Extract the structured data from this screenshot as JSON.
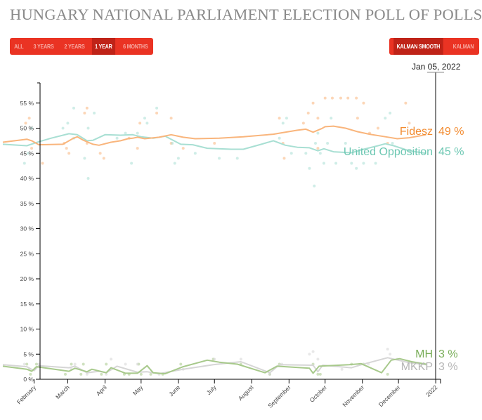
{
  "title": "HUNGARY NATIONAL PARLIAMENT ELECTION POLL OF POLLS",
  "range_buttons": [
    {
      "label": "ALL",
      "active": false
    },
    {
      "label": "3 YEARS",
      "active": false
    },
    {
      "label": "2 YEARS",
      "active": false
    },
    {
      "label": "1 YEAR",
      "active": true
    },
    {
      "label": "6 MONTHS",
      "active": false
    }
  ],
  "method_buttons": [
    {
      "label": "KALMAN SMOOTH",
      "active": true
    },
    {
      "label": "KALMAN",
      "active": false
    }
  ],
  "cursor_date": "Jan 05, 2022",
  "chart_data": {
    "type": "line",
    "title": "HUNGARY NATIONAL PARLIAMENT ELECTION POLL OF POLLS",
    "xlabel": "",
    "ylabel": "",
    "ylim": [
      0,
      58
    ],
    "xlim_days": [
      0,
      352
    ],
    "x_unit": "days since Jan 6, 2021",
    "yticks": [
      0,
      5,
      10,
      15,
      20,
      25,
      30,
      35,
      40,
      45,
      50,
      55
    ],
    "ytick_labels": [
      "0 %",
      "5 %",
      "10 %",
      "15 %",
      "20 %",
      "25 %",
      "30 %",
      "35 %",
      "40 %",
      "45 %",
      "50 %",
      "55 %"
    ],
    "xticks": [
      26,
      54,
      85,
      115,
      146,
      176,
      207,
      238,
      268,
      299,
      329,
      360
    ],
    "xtick_labels": [
      "February",
      "March",
      "April",
      "May",
      "June",
      "July",
      "August",
      "September",
      "October",
      "November",
      "December",
      "2022"
    ],
    "cursor_day": 364,
    "series": [
      {
        "name": "Fidesz",
        "color": "#f9b57c",
        "label_color": "#f28a2e",
        "last_value": "49 %",
        "line": [
          [
            0,
            47.2
          ],
          [
            20,
            47.8
          ],
          [
            24,
            47.5
          ],
          [
            30,
            46.7
          ],
          [
            50,
            46.8
          ],
          [
            58,
            47.9
          ],
          [
            62,
            48.3
          ],
          [
            67,
            47.6
          ],
          [
            75,
            46.8
          ],
          [
            80,
            46.6
          ],
          [
            90,
            47.2
          ],
          [
            98,
            47.5
          ],
          [
            104,
            47.9
          ],
          [
            108,
            48.0
          ],
          [
            112,
            48.2
          ],
          [
            118,
            47.9
          ],
          [
            130,
            48.2
          ],
          [
            140,
            48.7
          ],
          [
            150,
            48.2
          ],
          [
            160,
            47.9
          ],
          [
            180,
            48.0
          ],
          [
            200,
            48.3
          ],
          [
            225,
            48.8
          ],
          [
            230,
            49.0
          ],
          [
            245,
            49.6
          ],
          [
            252,
            49.8
          ],
          [
            258,
            49.2
          ],
          [
            265,
            49.9
          ],
          [
            268,
            50.3
          ],
          [
            275,
            50.4
          ],
          [
            285,
            50.0
          ],
          [
            295,
            49.3
          ],
          [
            305,
            48.8
          ],
          [
            318,
            48.3
          ],
          [
            328,
            47.9
          ],
          [
            338,
            48.1
          ],
          [
            352,
            48.7
          ]
        ],
        "points": [
          [
            19,
            51
          ],
          [
            22,
            52
          ],
          [
            24,
            46
          ],
          [
            33,
            43
          ],
          [
            51,
            47
          ],
          [
            53,
            46
          ],
          [
            55,
            45
          ],
          [
            68,
            53
          ],
          [
            70,
            54
          ],
          [
            70,
            47
          ],
          [
            81,
            45
          ],
          [
            84,
            44
          ],
          [
            105,
            48
          ],
          [
            112,
            46
          ],
          [
            114,
            51
          ],
          [
            128,
            53
          ],
          [
            140,
            52
          ],
          [
            140,
            47
          ],
          [
            150,
            46
          ],
          [
            176,
            47
          ],
          [
            230,
            52
          ],
          [
            233,
            47
          ],
          [
            234,
            44
          ],
          [
            250,
            51
          ],
          [
            254,
            53
          ],
          [
            258,
            55
          ],
          [
            262,
            52
          ],
          [
            262,
            46
          ],
          [
            268,
            56
          ],
          [
            274,
            56
          ],
          [
            281,
            56
          ],
          [
            287,
            56
          ],
          [
            294,
            56
          ],
          [
            300,
            55
          ],
          [
            295,
            52
          ],
          [
            305,
            49
          ],
          [
            312,
            50
          ],
          [
            320,
            47
          ],
          [
            335,
            55
          ],
          [
            338,
            51
          ]
        ]
      },
      {
        "name": "United Opposition",
        "color": "#a8dfd3",
        "label_color": "#6cc7b2",
        "last_value": "45 %",
        "line": [
          [
            0,
            46.8
          ],
          [
            20,
            46.5
          ],
          [
            30,
            47.3
          ],
          [
            40,
            48.0
          ],
          [
            55,
            48.9
          ],
          [
            62,
            48.7
          ],
          [
            70,
            47.5
          ],
          [
            75,
            47.6
          ],
          [
            85,
            48.7
          ],
          [
            98,
            48.6
          ],
          [
            108,
            48.7
          ],
          [
            115,
            48.3
          ],
          [
            125,
            48.0
          ],
          [
            135,
            48.4
          ],
          [
            148,
            46.8
          ],
          [
            158,
            46.7
          ],
          [
            170,
            46.0
          ],
          [
            190,
            45.8
          ],
          [
            200,
            45.8
          ],
          [
            215,
            46.8
          ],
          [
            225,
            47.5
          ],
          [
            235,
            46.6
          ],
          [
            245,
            46.2
          ],
          [
            255,
            46.1
          ],
          [
            262,
            45.5
          ],
          [
            267,
            45.9
          ],
          [
            275,
            45.3
          ],
          [
            290,
            45.1
          ],
          [
            300,
            45.8
          ],
          [
            312,
            46.5
          ],
          [
            318,
            46.9
          ],
          [
            325,
            46.5
          ],
          [
            338,
            45.5
          ],
          [
            352,
            45.0
          ]
        ],
        "points": [
          [
            18,
            43
          ],
          [
            21,
            45
          ],
          [
            24,
            50
          ],
          [
            50,
            50
          ],
          [
            54,
            51
          ],
          [
            59,
            48
          ],
          [
            59,
            54
          ],
          [
            68,
            44
          ],
          [
            71,
            40
          ],
          [
            71,
            50
          ],
          [
            76,
            53
          ],
          [
            95,
            48
          ],
          [
            102,
            49
          ],
          [
            107,
            43
          ],
          [
            112,
            49
          ],
          [
            118,
            52
          ],
          [
            120,
            51
          ],
          [
            128,
            54
          ],
          [
            141,
            47
          ],
          [
            143,
            43
          ],
          [
            146,
            44
          ],
          [
            160,
            45
          ],
          [
            180,
            44
          ],
          [
            195,
            44
          ],
          [
            230,
            48
          ],
          [
            233,
            51
          ],
          [
            236,
            52
          ],
          [
            240,
            45
          ],
          [
            252,
            45
          ],
          [
            255,
            42
          ],
          [
            259,
            38.5
          ],
          [
            260,
            47
          ],
          [
            262,
            49
          ],
          [
            264,
            45
          ],
          [
            267,
            43
          ],
          [
            270,
            47
          ],
          [
            273,
            52
          ],
          [
            277,
            43
          ],
          [
            285,
            47
          ],
          [
            290,
            43
          ],
          [
            294,
            42
          ],
          [
            300,
            43
          ],
          [
            310,
            43
          ],
          [
            318,
            52
          ],
          [
            322,
            53
          ],
          [
            324,
            47
          ]
        ]
      },
      {
        "name": "MH",
        "color": "#a7c98b",
        "label_color": "#78ad57",
        "last_value": "3 %",
        "line": [
          [
            0,
            2.6
          ],
          [
            20,
            2.0
          ],
          [
            24,
            1.6
          ],
          [
            28,
            2.5
          ],
          [
            55,
            1.6
          ],
          [
            60,
            2.2
          ],
          [
            70,
            1.5
          ],
          [
            74,
            2.0
          ],
          [
            86,
            1.3
          ],
          [
            90,
            2.3
          ],
          [
            102,
            1.2
          ],
          [
            112,
            1.2
          ],
          [
            120,
            2.7
          ],
          [
            125,
            1.3
          ],
          [
            135,
            1.1
          ],
          [
            150,
            2.5
          ],
          [
            170,
            3.8
          ],
          [
            180,
            3.4
          ],
          [
            195,
            3.0
          ],
          [
            218,
            1.3
          ],
          [
            228,
            2.6
          ],
          [
            255,
            2.2
          ],
          [
            258,
            1.2
          ],
          [
            263,
            2.6
          ],
          [
            288,
            2.9
          ],
          [
            298,
            3.1
          ],
          [
            315,
            1.3
          ],
          [
            323,
            3.8
          ],
          [
            330,
            4.1
          ],
          [
            340,
            3.5
          ],
          [
            352,
            3.0
          ]
        ],
        "points": [
          [
            20,
            3
          ],
          [
            23,
            1
          ],
          [
            28,
            3
          ],
          [
            52,
            1
          ],
          [
            57,
            3
          ],
          [
            65,
            1
          ],
          [
            67,
            3
          ],
          [
            82,
            1
          ],
          [
            86,
            3
          ],
          [
            101,
            1
          ],
          [
            105,
            1
          ],
          [
            113,
            3
          ],
          [
            115,
            1
          ],
          [
            123,
            1
          ],
          [
            133,
            1
          ],
          [
            148,
            3
          ],
          [
            175,
            4
          ],
          [
            198,
            3
          ],
          [
            222,
            1
          ],
          [
            230,
            3
          ],
          [
            258,
            3
          ],
          [
            262,
            1
          ],
          [
            264,
            1
          ],
          [
            290,
            3
          ],
          [
            300,
            3
          ],
          [
            320,
            1
          ]
        ]
      },
      {
        "name": "MKKP",
        "color": "#d6d6d6",
        "label_color": "#b5b5b5",
        "last_value": "3 %",
        "line": [
          [
            0,
            2.9
          ],
          [
            20,
            2.5
          ],
          [
            26,
            1.7
          ],
          [
            30,
            2.7
          ],
          [
            55,
            2.3
          ],
          [
            60,
            2.6
          ],
          [
            70,
            1.3
          ],
          [
            80,
            1.6
          ],
          [
            86,
            1.3
          ],
          [
            95,
            2.6
          ],
          [
            112,
            1.4
          ],
          [
            120,
            1.5
          ],
          [
            130,
            1.1
          ],
          [
            150,
            2.0
          ],
          [
            175,
            2.9
          ],
          [
            198,
            3.5
          ],
          [
            222,
            1.3
          ],
          [
            230,
            2.9
          ],
          [
            258,
            2.8
          ],
          [
            262,
            1.5
          ],
          [
            266,
            2.8
          ],
          [
            290,
            2.3
          ],
          [
            298,
            2.9
          ],
          [
            320,
            4.3
          ],
          [
            338,
            3.3
          ],
          [
            352,
            2.9
          ]
        ],
        "points": [
          [
            18,
            3
          ],
          [
            22,
            2
          ],
          [
            30,
            3
          ],
          [
            57,
            2
          ],
          [
            60,
            3
          ],
          [
            70,
            1
          ],
          [
            86,
            1
          ],
          [
            90,
            4
          ],
          [
            102,
            3
          ],
          [
            112,
            3
          ],
          [
            130,
            1
          ],
          [
            150,
            2
          ],
          [
            176,
            4
          ],
          [
            198,
            4
          ],
          [
            222,
            1
          ],
          [
            232,
            3
          ],
          [
            255,
            5
          ],
          [
            258,
            5.5
          ],
          [
            262,
            4
          ],
          [
            282,
            2
          ],
          [
            304,
            3
          ],
          [
            320,
            6
          ],
          [
            322,
            5
          ],
          [
            328,
            4
          ]
        ]
      }
    ]
  }
}
